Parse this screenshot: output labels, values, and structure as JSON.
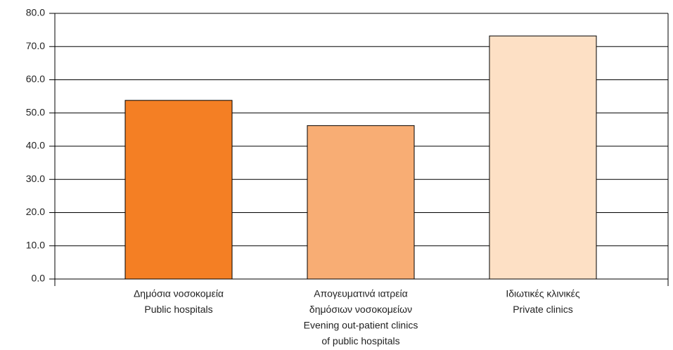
{
  "chart_data": {
    "type": "bar",
    "categories": [
      [
        "Δημόσια νοσοκομεία",
        "Public hospitals"
      ],
      [
        "Απογευματινά ιατρεία",
        "δημόσιων νοσοκομείων",
        "Evening out-patient clinics",
        "of public hospitals"
      ],
      [
        "Ιδιωτικές κλινικές",
        "Private clinics"
      ]
    ],
    "values": [
      53.8,
      46.2,
      73.2
    ],
    "colors": [
      "#f47f24",
      "#f8ad74",
      "#fde0c5"
    ],
    "ylim": [
      0,
      80
    ],
    "yticks": [
      {
        "value": 0,
        "label": "0.0"
      },
      {
        "value": 10,
        "label": "10.0"
      },
      {
        "value": 20,
        "label": "20.0"
      },
      {
        "value": 30,
        "label": "30.0"
      },
      {
        "value": 40,
        "label": "40.0"
      },
      {
        "value": 50,
        "label": "50.0"
      },
      {
        "value": 60,
        "label": "60.0"
      },
      {
        "value": 70,
        "label": "70.0"
      },
      {
        "value": 80,
        "label": "80.0"
      }
    ],
    "grid": true
  }
}
